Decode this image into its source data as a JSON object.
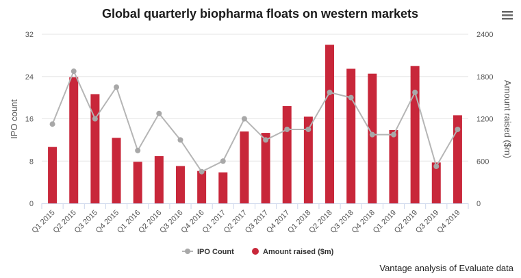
{
  "chart_data": {
    "type": "bar-line combo",
    "title": "Global quarterly biopharma floats on western markets",
    "categories": [
      "Q1 2015",
      "Q2 2015",
      "Q3 2015",
      "Q4 2015",
      "Q1 2016",
      "Q2 2016",
      "Q3 2016",
      "Q4 2016",
      "Q1 2017",
      "Q2 2017",
      "Q3 2017",
      "Q4 2017",
      "Q1 2018",
      "Q2 2018",
      "Q3 2018",
      "Q4 2018",
      "Q1 2019",
      "Q2 2019",
      "Q3 2019",
      "Q4 2019"
    ],
    "series": [
      {
        "name": "IPO Count",
        "type": "line",
        "axis": "left",
        "values": [
          15,
          25,
          16,
          22,
          10,
          17,
          12,
          6,
          8,
          16,
          12,
          14,
          14,
          21,
          20,
          13,
          13,
          21,
          7,
          14
        ]
      },
      {
        "name": "Amount raised ($m)",
        "type": "bar",
        "axis": "right",
        "values": [
          800,
          1790,
          1550,
          930,
          590,
          670,
          530,
          460,
          440,
          1020,
          1000,
          1380,
          1230,
          2250,
          1910,
          1840,
          1040,
          1950,
          580,
          1250
        ]
      }
    ],
    "left_axis": {
      "label": "IPO count",
      "ticks": [
        "0",
        "8",
        "16",
        "24",
        "32"
      ],
      "range": [
        0,
        32
      ]
    },
    "right_axis": {
      "label": "Amount raised ($m)",
      "ticks": [
        "0",
        "600",
        "1200",
        "1800",
        "2400"
      ],
      "range": [
        0,
        2400
      ]
    },
    "legend": {
      "position": "bottom-center"
    },
    "credit": "Vantage analysis of Evaluate data",
    "colors": {
      "bar": "#c8273a",
      "line": "#b5b5b5",
      "marker": "#a8a8a8",
      "grid": "#e6e6e6",
      "axis": "#ccd6eb"
    }
  },
  "menu": {
    "icon": "hamburger-menu-icon"
  }
}
